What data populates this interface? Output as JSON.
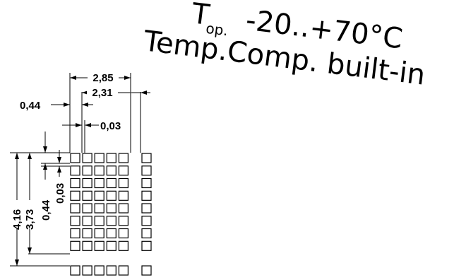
{
  "temperature": {
    "symbol": "T",
    "subscript": "op.",
    "range": "-20..+70°C",
    "compensation": "Temp.Comp. built-in"
  },
  "dimensions": {
    "overall_width": "2,85",
    "block_width": "2,31",
    "offset": "0,44",
    "gap_horizontal": "0,03",
    "overall_height": "4,16",
    "block_height": "3,73",
    "offset_vertical": "0,44",
    "gap_vertical": "0,03"
  },
  "matrix": {
    "main_columns": 5,
    "main_rows": 8,
    "side_columns": 1,
    "cursor_row_cells": 5
  }
}
